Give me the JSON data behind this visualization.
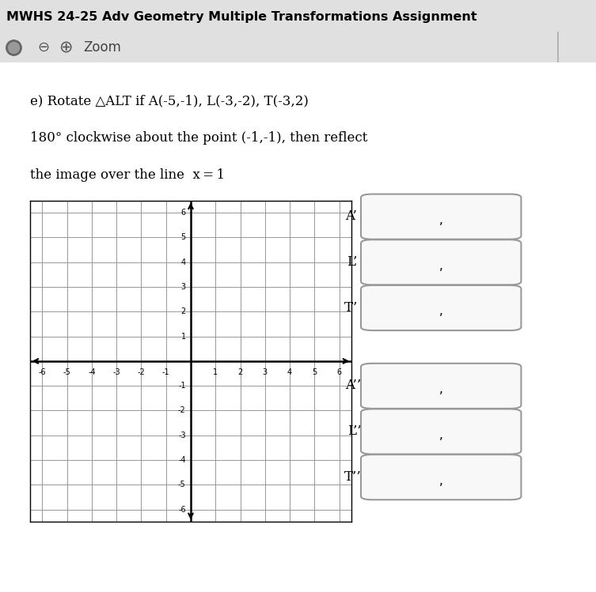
{
  "title": "MWHS 24-25 Adv Geometry Multiple Transformations Assignment",
  "toolbar_label": "Zoom",
  "problem_line1": "e) Rotate △ALT if A(-5,-1), L(-3,-2), T(-3,2)",
  "problem_line2": "180° clockwise about the point (-1,-1), then reflect",
  "problem_line3": "the image over the line  x = 1",
  "axis_xlim": [
    -6.5,
    6.5
  ],
  "axis_ylim": [
    -6.5,
    6.5
  ],
  "xticks": [
    -6,
    -5,
    -4,
    -3,
    -2,
    -1,
    0,
    1,
    2,
    3,
    4,
    5,
    6
  ],
  "yticks": [
    -6,
    -5,
    -4,
    -3,
    -2,
    -1,
    0,
    1,
    2,
    3,
    4,
    5,
    6
  ],
  "header_bg": "#c8c8c8",
  "toolbar_bg": "#e8e8e8",
  "content_bg": "#e0e0e0",
  "answer_labels_prime": [
    "A’ (",
    "L’ (",
    "T’ ("
  ],
  "answer_labels_double": [
    "A’’(",
    "L’’(",
    "T’’("
  ]
}
